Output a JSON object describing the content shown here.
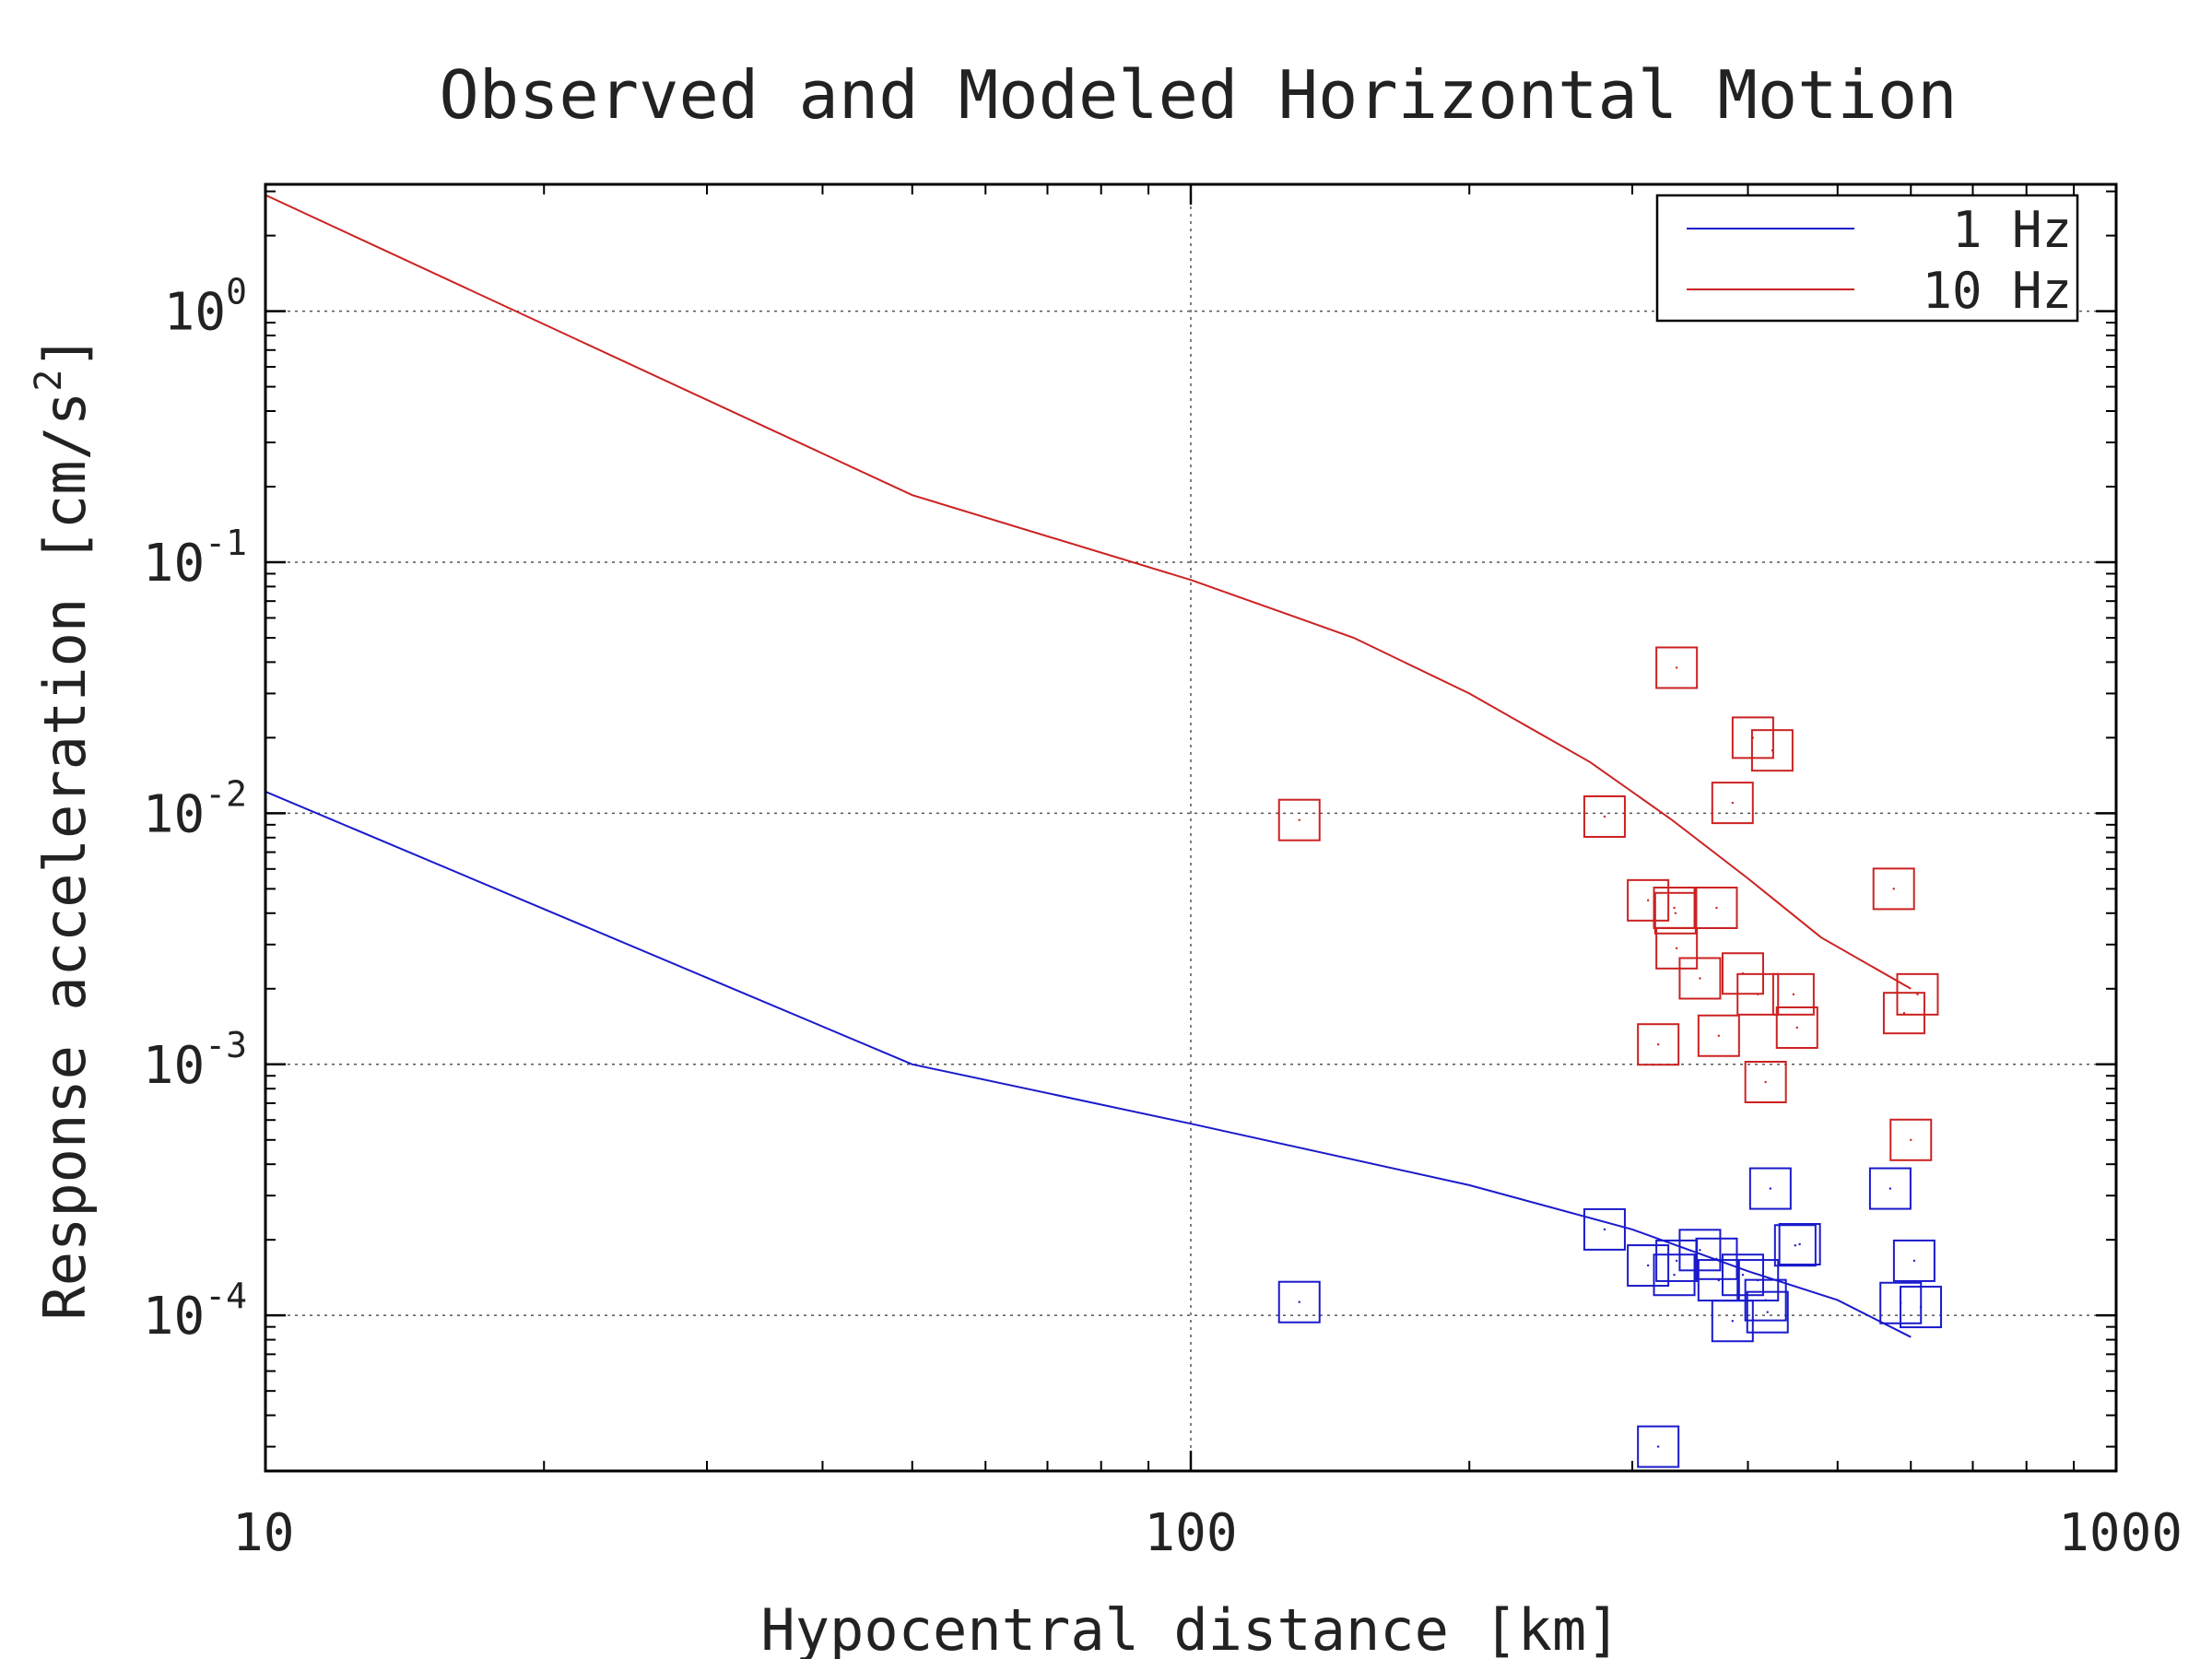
{
  "chart_data": {
    "type": "scatter",
    "title": "Observed and Modeled Horizontal Motion",
    "xlabel": "Hypocentral distance [km]",
    "ylabel": "Response acceleration [cm/s",
    "ylabel_sup": "2",
    "ylabel_end": "]",
    "x_scale": "log",
    "y_scale": "log",
    "xlim": [
      10,
      1000
    ],
    "ylim": [
      2.4e-05,
      3.2
    ],
    "grid": true,
    "legend_position": "top-right",
    "x_ticks": [
      {
        "value": 10,
        "label": "10"
      },
      {
        "value": 100,
        "label": "100"
      },
      {
        "value": 1000,
        "label": "1000"
      }
    ],
    "y_ticks": [
      {
        "value": 1,
        "base": "10",
        "exp": "0"
      },
      {
        "value": 0.1,
        "base": "10",
        "exp": "-1"
      },
      {
        "value": 0.01,
        "base": "10",
        "exp": "-2"
      },
      {
        "value": 0.001,
        "base": "10",
        "exp": "-3"
      },
      {
        "value": 0.0001,
        "base": "10",
        "exp": "-4"
      }
    ],
    "series": [
      {
        "name": "1 Hz",
        "color": "#1a1acc",
        "model_line": [
          [
            10,
            0.0122
          ],
          [
            50,
            0.001
          ],
          [
            100,
            0.00058
          ],
          [
            200,
            0.00033
          ],
          [
            300,
            0.00022
          ],
          [
            400,
            0.00015
          ],
          [
            500,
            0.000115
          ],
          [
            600,
            8.2e-05
          ]
        ],
        "observed": [
          [
            131,
            0.000113
          ],
          [
            280,
            0.00022
          ],
          [
            312,
            0.000158
          ],
          [
            320,
            3e-05
          ],
          [
            333,
            0.000145
          ],
          [
            335,
            0.000165
          ],
          [
            355,
            0.000182
          ],
          [
            370,
            0.000168
          ],
          [
            372,
            0.000138
          ],
          [
            385,
            9.5e-05
          ],
          [
            395,
            0.000145
          ],
          [
            410,
            0.000138
          ],
          [
            418,
            0.000115
          ],
          [
            420,
            0.000103
          ],
          [
            423,
            0.00032
          ],
          [
            450,
            0.00019
          ],
          [
            455,
            0.000192
          ],
          [
            570,
            0.00032
          ],
          [
            585,
            0.000112
          ],
          [
            605,
            0.000165
          ],
          [
            615,
            0.000108
          ]
        ]
      },
      {
        "name": "10 Hz",
        "color": "#cc2222",
        "model_line": [
          [
            10,
            2.9
          ],
          [
            50,
            0.185
          ],
          [
            100,
            0.085
          ],
          [
            150,
            0.05
          ],
          [
            200,
            0.03
          ],
          [
            270,
            0.016
          ],
          [
            330,
            0.0095
          ],
          [
            400,
            0.0055
          ],
          [
            480,
            0.0032
          ],
          [
            600,
            0.002
          ]
        ],
        "observed": [
          [
            131,
            0.0094
          ],
          [
            280,
            0.0097
          ],
          [
            312,
            0.0045
          ],
          [
            320,
            0.0012
          ],
          [
            333,
            0.0042
          ],
          [
            334,
            0.004
          ],
          [
            335,
            0.0029
          ],
          [
            335,
            0.038
          ],
          [
            355,
            0.0022
          ],
          [
            370,
            0.0042
          ],
          [
            372,
            0.0013
          ],
          [
            385,
            0.011
          ],
          [
            395,
            0.0023
          ],
          [
            405,
            0.02
          ],
          [
            410,
            0.0019
          ],
          [
            418,
            0.00085
          ],
          [
            425,
            0.0178
          ],
          [
            448,
            0.0019
          ],
          [
            452,
            0.0014
          ],
          [
            575,
            0.005
          ],
          [
            590,
            0.0016
          ],
          [
            600,
            0.0005
          ],
          [
            610,
            0.0019
          ]
        ]
      }
    ]
  }
}
